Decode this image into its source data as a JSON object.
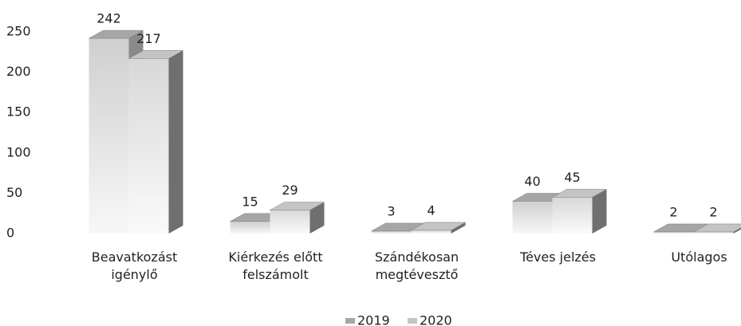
{
  "chart_data": {
    "type": "bar",
    "categories": [
      "Beavatkozást igénylő",
      "Kiérkezés előtt felszámolt",
      "Szándékosan megtévesztő",
      "Téves jelzés",
      "Utólagos"
    ],
    "series": [
      {
        "name": "2019",
        "color": "#a6a6a6",
        "values": [
          242,
          15,
          3,
          40,
          2
        ]
      },
      {
        "name": "2020",
        "color": "#c4c4c4",
        "values": [
          217,
          29,
          4,
          45,
          2
        ]
      }
    ],
    "ylim": [
      0,
      250
    ],
    "yticks": [
      0,
      50,
      100,
      150,
      200,
      250
    ]
  }
}
